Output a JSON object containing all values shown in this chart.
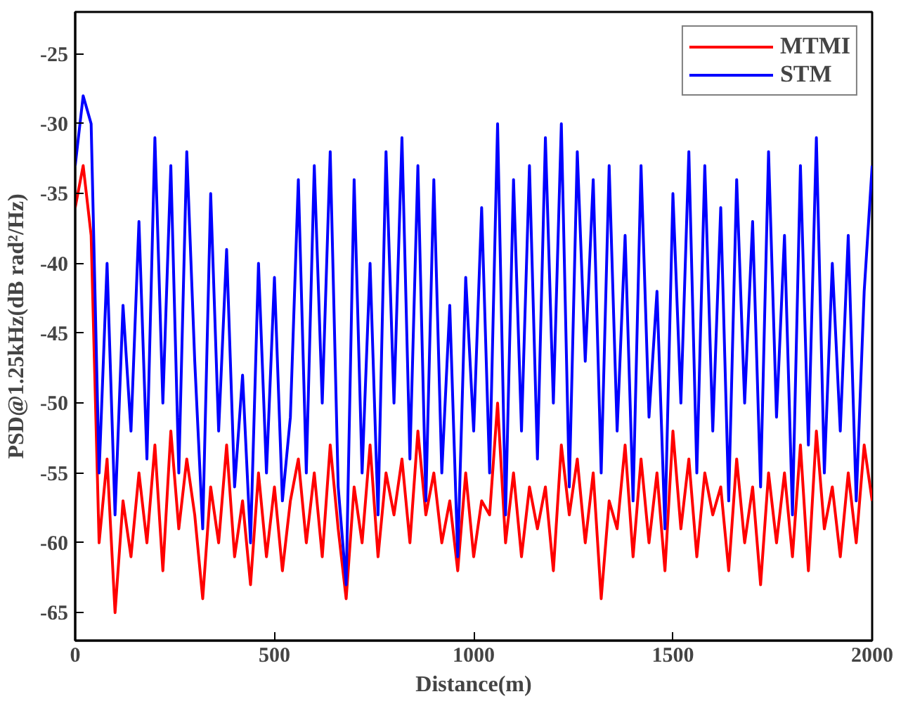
{
  "chart_data": {
    "type": "line",
    "xlabel": "Distance(m)",
    "ylabel": "PSD@1.25kHz(dB rad²/Hz)",
    "x": [
      0,
      20,
      40,
      60,
      80,
      100,
      120,
      140,
      160,
      180,
      200,
      220,
      240,
      260,
      280,
      300,
      320,
      340,
      360,
      380,
      400,
      420,
      440,
      460,
      480,
      500,
      520,
      540,
      560,
      580,
      600,
      620,
      640,
      660,
      680,
      700,
      720,
      740,
      760,
      780,
      800,
      820,
      840,
      860,
      880,
      900,
      920,
      940,
      960,
      980,
      1000,
      1020,
      1040,
      1060,
      1080,
      1100,
      1120,
      1140,
      1160,
      1180,
      1200,
      1220,
      1240,
      1260,
      1280,
      1300,
      1320,
      1340,
      1360,
      1380,
      1400,
      1420,
      1440,
      1460,
      1480,
      1500,
      1520,
      1540,
      1560,
      1580,
      1600,
      1620,
      1640,
      1660,
      1680,
      1700,
      1720,
      1740,
      1760,
      1780,
      1800,
      1820,
      1840,
      1860,
      1880,
      1900,
      1920,
      1940,
      1960,
      1980,
      2000
    ],
    "xlim": [
      0,
      2000
    ],
    "xticks": [
      0,
      500,
      1000,
      1500,
      2000
    ],
    "ylim": [
      -67,
      -22
    ],
    "yticks": [
      -65,
      -60,
      -55,
      -50,
      -45,
      -40,
      -35,
      -30,
      -25
    ],
    "grid": false,
    "legend": "top right",
    "line_style": "solid",
    "series": [
      {
        "name": "MTMI",
        "color": "#ff0000",
        "values": [
          -36,
          -33,
          -38,
          -60,
          -54,
          -65,
          -57,
          -61,
          -55,
          -60,
          -53,
          -62,
          -52,
          -59,
          -54,
          -58,
          -64,
          -56,
          -60,
          -53,
          -61,
          -57,
          -63,
          -55,
          -61,
          -56,
          -62,
          -57,
          -54,
          -60,
          -55,
          -61,
          -53,
          -59,
          -64,
          -56,
          -60,
          -53,
          -61,
          -55,
          -58,
          -54,
          -60,
          -52,
          -58,
          -55,
          -60,
          -57,
          -62,
          -55,
          -61,
          -57,
          -58,
          -50,
          -60,
          -55,
          -61,
          -56,
          -59,
          -56,
          -62,
          -53,
          -58,
          -54,
          -60,
          -55,
          -64,
          -57,
          -59,
          -53,
          -61,
          -54,
          -60,
          -55,
          -62,
          -52,
          -59,
          -54,
          -61,
          -55,
          -58,
          -56,
          -62,
          -54,
          -60,
          -56,
          -63,
          -55,
          -60,
          -55,
          -61,
          -53,
          -62,
          -52,
          -59,
          -56,
          -61,
          -55,
          -60,
          -53,
          -57
        ]
      },
      {
        "name": "STM",
        "color": "#0000ff",
        "values": [
          -33,
          -28,
          -30,
          -55,
          -40,
          -58,
          -43,
          -52,
          -37,
          -54,
          -31,
          -50,
          -33,
          -55,
          -32,
          -47,
          -59,
          -35,
          -52,
          -39,
          -56,
          -48,
          -60,
          -40,
          -55,
          -41,
          -57,
          -51,
          -34,
          -55,
          -33,
          -50,
          -32,
          -56,
          -63,
          -34,
          -55,
          -40,
          -58,
          -32,
          -50,
          -31,
          -54,
          -33,
          -57,
          -34,
          -55,
          -43,
          -61,
          -41,
          -52,
          -36,
          -55,
          -30,
          -58,
          -34,
          -52,
          -33,
          -54,
          -31,
          -50,
          -30,
          -56,
          -32,
          -47,
          -34,
          -55,
          -33,
          -52,
          -38,
          -57,
          -33,
          -51,
          -42,
          -59,
          -35,
          -50,
          -32,
          -55,
          -33,
          -52,
          -36,
          -57,
          -34,
          -50,
          -37,
          -56,
          -32,
          -51,
          -38,
          -58,
          -33,
          -53,
          -31,
          -55,
          -40,
          -52,
          -38,
          -57,
          -42,
          -33
        ]
      }
    ]
  }
}
